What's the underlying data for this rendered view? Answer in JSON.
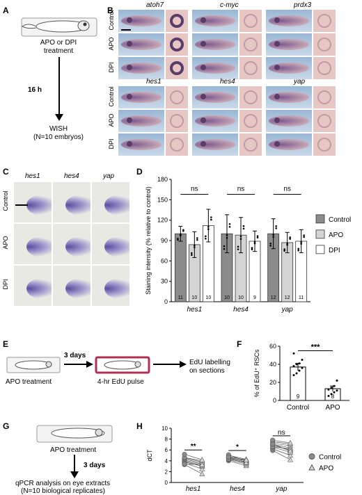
{
  "panels": {
    "A": "A",
    "B": "B",
    "C": "C",
    "D": "D",
    "E": "E",
    "F": "F",
    "G": "G",
    "H": "H"
  },
  "panelA": {
    "treatment": [
      "APO or DPI",
      "treatment"
    ],
    "time": "16 h",
    "readout": [
      "WISH",
      "(N=10 embryos)"
    ]
  },
  "panelB": {
    "genes_top": [
      "atoh7",
      "c-myc",
      "prdx3"
    ],
    "genes_bottom": [
      "hes1",
      "hes4",
      "yap"
    ],
    "rows": [
      "Control",
      "APO",
      "DPI"
    ]
  },
  "panelC": {
    "genes": [
      "hes1",
      "hes4",
      "yap"
    ],
    "rows": [
      "Control",
      "APO",
      "DPI"
    ]
  },
  "panelE": {
    "treatment": "APO treatment",
    "time": "3 days",
    "pulse": "4-hr EdU pulse",
    "labelling": [
      "EdU labelling",
      "on sections"
    ]
  },
  "panelG": {
    "treatment": "APO treatment",
    "time": "3 days",
    "readout": [
      "qPCR analysis on eye extracts",
      "(N=10 biological replicates)"
    ]
  },
  "chart_data": [
    {
      "id": "D",
      "type": "bar",
      "ylabel": "Staining intensity (% relative to control)",
      "ylim": [
        0,
        180
      ],
      "yticks": [
        0,
        30,
        60,
        90,
        120,
        150,
        180
      ],
      "categories": [
        "hes1",
        "hes4",
        "yap"
      ],
      "series": [
        {
          "name": "Control",
          "color": "#8c8c8c",
          "values": [
            100,
            100,
            100
          ],
          "err": [
            11,
            28,
            22
          ],
          "n": [
            "11",
            "10",
            "12"
          ]
        },
        {
          "name": "APO",
          "color": "#d4d4d4",
          "values": [
            84,
            98,
            87
          ],
          "err": [
            19,
            26,
            15
          ],
          "n": [
            "10",
            "10",
            "12"
          ]
        },
        {
          "name": "DPI",
          "color": "#ffffff",
          "values": [
            112,
            89,
            89
          ],
          "err": [
            24,
            15,
            17
          ],
          "n": [
            "10",
            "9",
            "11"
          ]
        }
      ],
      "significance": [
        "ns",
        "ns",
        "ns"
      ],
      "legend_position": "right"
    },
    {
      "id": "F",
      "type": "bar",
      "ylabel": "% of EdU⁺ RSCs",
      "ylim": [
        0,
        60
      ],
      "yticks": [
        0,
        20,
        40,
        60
      ],
      "categories": [
        "Control",
        "APO"
      ],
      "values": [
        37,
        13
      ],
      "err": [
        4,
        3
      ],
      "n": [
        "9",
        "8"
      ],
      "points": [
        [
          28,
          30,
          33,
          36,
          38,
          40,
          41,
          45,
          52
        ],
        [
          5,
          7,
          9,
          11,
          12,
          14,
          16,
          22
        ]
      ],
      "significance": "***"
    },
    {
      "id": "H",
      "type": "scatter",
      "ylabel": "dCT",
      "ylim": [
        0,
        10
      ],
      "yticks": [
        0,
        2,
        4,
        6,
        8,
        10
      ],
      "categories": [
        "hes1",
        "hes4",
        "yap"
      ],
      "series": [
        {
          "name": "Control",
          "marker": "circle",
          "color": "#8c8c8c",
          "values": [
            [
              3.3,
              3.6,
              3.8,
              3.9,
              4.1,
              4.3,
              4.5,
              4.6,
              5.2,
              3.4
            ],
            [
              4.0,
              4.2,
              4.4,
              4.5,
              4.6,
              4.8,
              5.0,
              5.1,
              4.3,
              4.7
            ],
            [
              5.9,
              6.2,
              6.5,
              6.8,
              7.0,
              7.2,
              7.5,
              7.8,
              6.6,
              7.1
            ]
          ]
        },
        {
          "name": "APO",
          "marker": "triangle",
          "color": "#d4d4d4",
          "values": [
            [
              1.6,
              2.5,
              3.0,
              3.2,
              3.4,
              3.6,
              3.8,
              4.0,
              4.2,
              3.3
            ],
            [
              3.1,
              3.4,
              3.6,
              3.8,
              4.0,
              4.1,
              4.3,
              3.9,
              3.7,
              4.2
            ],
            [
              4.2,
              5.0,
              5.6,
              6.0,
              6.4,
              6.8,
              7.1,
              7.3,
              6.2,
              5.8
            ]
          ]
        }
      ],
      "significance": [
        "**",
        "*",
        "ns"
      ],
      "legend_position": "right"
    }
  ]
}
